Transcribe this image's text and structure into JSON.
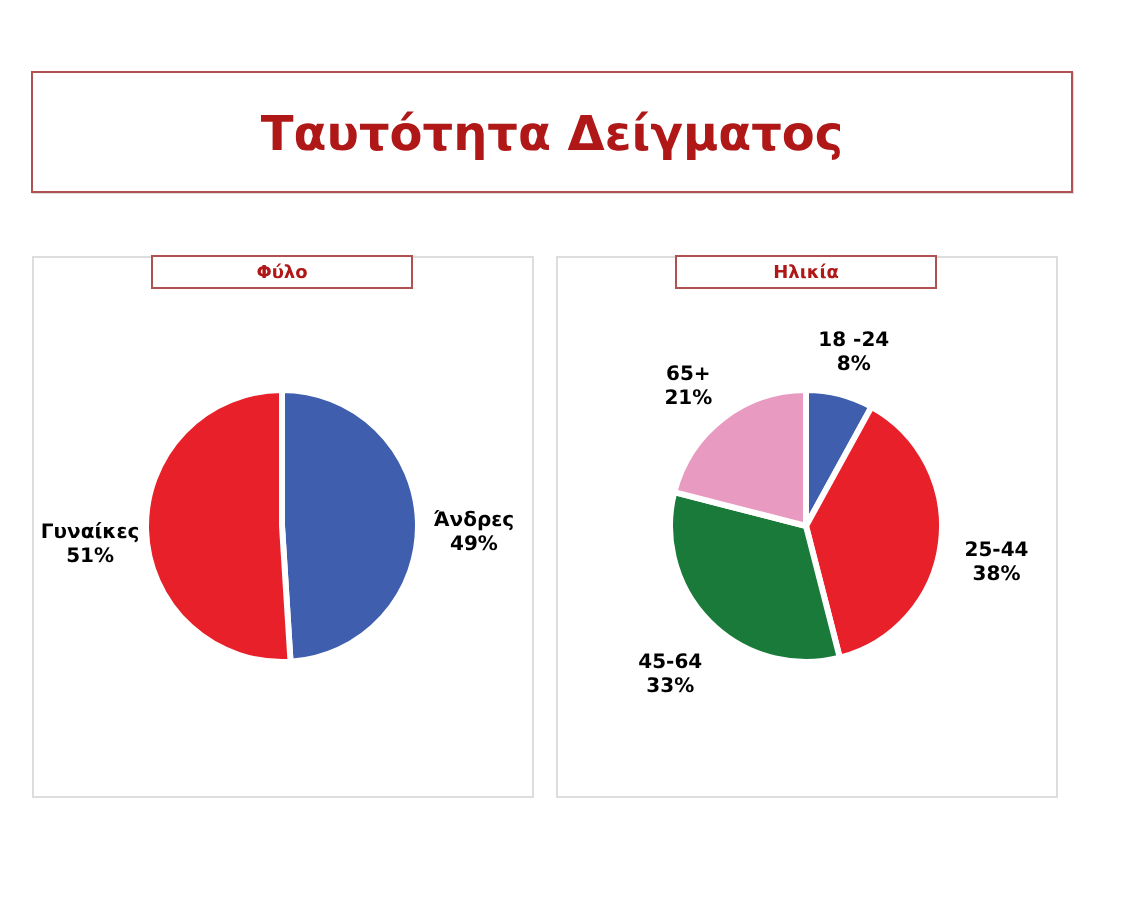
{
  "chart_data": [
    {
      "type": "other",
      "title": "Ταυτότητα Δείγματος"
    },
    {
      "type": "pie",
      "title": "Φύλο",
      "categories": [
        "Άνδρες",
        "Γυναίκες"
      ],
      "values": [
        49,
        51
      ],
      "colors": [
        "#3f5fae",
        "#e8202a"
      ],
      "value_labels": [
        "49%",
        "51%"
      ],
      "legend": false
    },
    {
      "type": "pie",
      "title": "Ηλικία",
      "categories": [
        "18 -24",
        "25-44",
        "45-64",
        "65+"
      ],
      "values": [
        8,
        38,
        33,
        21
      ],
      "colors": [
        "#3f5fae",
        "#e8202a",
        "#1a7a3a",
        "#e89ac0"
      ],
      "value_labels": [
        "8%",
        "38%",
        "33%",
        "21%"
      ],
      "legend": false
    }
  ]
}
